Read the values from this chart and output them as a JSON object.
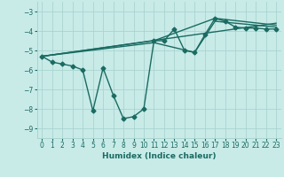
{
  "xlabel": "Humidex (Indice chaleur)",
  "background_color": "#c8ebe8",
  "grid_color": "#aad4d0",
  "line_color": "#1a6b62",
  "marker": "D",
  "markersize": 2.5,
  "linewidth": 1.0,
  "xlim": [
    -0.5,
    23.5
  ],
  "ylim": [
    -9.5,
    -2.5
  ],
  "yticks": [
    -9,
    -8,
    -7,
    -6,
    -5,
    -4,
    -3
  ],
  "xticks": [
    0,
    1,
    2,
    3,
    4,
    5,
    6,
    7,
    8,
    9,
    10,
    11,
    12,
    13,
    14,
    15,
    16,
    17,
    18,
    19,
    20,
    21,
    22,
    23
  ],
  "series": [
    [
      0,
      -5.3
    ],
    [
      1,
      -5.6
    ],
    [
      2,
      -5.7
    ],
    [
      3,
      -5.8
    ],
    [
      4,
      -6.0
    ],
    [
      5,
      -8.1
    ],
    [
      6,
      -5.9
    ],
    [
      7,
      -7.3
    ],
    [
      8,
      -8.5
    ],
    [
      9,
      -8.4
    ],
    [
      10,
      -8.0
    ],
    [
      11,
      -4.5
    ],
    [
      12,
      -4.5
    ],
    [
      13,
      -3.9
    ],
    [
      14,
      -5.0
    ],
    [
      15,
      -5.1
    ],
    [
      16,
      -4.2
    ],
    [
      17,
      -3.35
    ],
    [
      18,
      -3.5
    ],
    [
      19,
      -3.8
    ],
    [
      20,
      -3.85
    ],
    [
      21,
      -3.85
    ],
    [
      22,
      -3.9
    ],
    [
      23,
      -3.9
    ]
  ],
  "line2": [
    [
      0,
      -5.3
    ],
    [
      23,
      -3.6
    ]
  ],
  "line3": [
    [
      0,
      -5.3
    ],
    [
      11,
      -4.5
    ],
    [
      17,
      -3.35
    ],
    [
      23,
      -3.7
    ]
  ],
  "line4": [
    [
      0,
      -5.3
    ],
    [
      11,
      -4.6
    ],
    [
      15,
      -5.1
    ],
    [
      17,
      -3.5
    ],
    [
      23,
      -3.8
    ]
  ]
}
